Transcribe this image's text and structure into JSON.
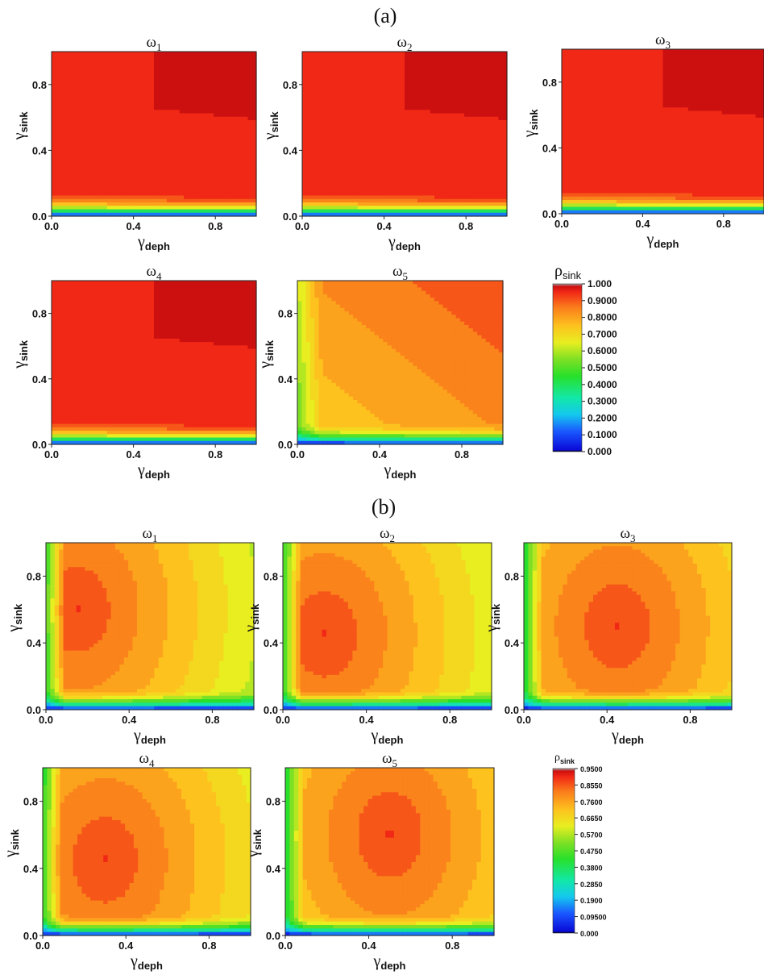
{
  "figure": {
    "panel_a_label": "(a)",
    "panel_b_label": "(b)"
  },
  "chart_data": [
    {
      "panel": "(a)",
      "type": "heatmap",
      "title": "ω1",
      "xlabel": "γdeph",
      "ylabel": "γsink",
      "xlim": [
        0,
        1
      ],
      "ylim": [
        0,
        1
      ],
      "xticks": [
        "0.0",
        "0.4",
        "0.8"
      ],
      "yticks": [
        "0.0",
        "0.4",
        "0.8"
      ],
      "pattern": "plateau",
      "description": "rho_sink rises from ~0 at gamma_sink=0 to ~0.93-0.97 above gamma_sink≈0.15"
    },
    {
      "panel": "(a)",
      "type": "heatmap",
      "title": "ω2",
      "xlabel": "γdeph",
      "ylabel": "γsink",
      "xlim": [
        0,
        1
      ],
      "ylim": [
        0,
        1
      ],
      "xticks": [
        "0.0",
        "0.4",
        "0.8"
      ],
      "yticks": [
        "0.0",
        "0.4",
        "0.8"
      ],
      "pattern": "plateau"
    },
    {
      "panel": "(a)",
      "type": "heatmap",
      "title": "ω3",
      "xlabel": "γdeph",
      "ylabel": "γsink",
      "xlim": [
        0,
        1
      ],
      "ylim": [
        0,
        1
      ],
      "xticks": [
        "0.0",
        "0.4",
        "0.8"
      ],
      "yticks": [
        "0.0",
        "0.4",
        "0.8"
      ],
      "pattern": "plateau"
    },
    {
      "panel": "(a)",
      "type": "heatmap",
      "title": "ω4",
      "xlabel": "γdeph",
      "ylabel": "γsink",
      "xlim": [
        0,
        1
      ],
      "ylim": [
        0,
        1
      ],
      "xticks": [
        "0.0",
        "0.4",
        "0.8"
      ],
      "yticks": [
        "0.0",
        "0.4",
        "0.8"
      ],
      "pattern": "plateau"
    },
    {
      "panel": "(a)",
      "type": "heatmap",
      "title": "ω5",
      "xlabel": "γdeph",
      "ylabel": "γsink",
      "xlim": [
        0,
        1
      ],
      "ylim": [
        0,
        1
      ],
      "xticks": [
        "0.0",
        "0.4",
        "0.8"
      ],
      "yticks": [
        "0.0",
        "0.4",
        "0.8"
      ],
      "pattern": "diagonal",
      "description": "rho_sink low (~0.5) near gamma_deph=0, increases toward ~0.88 at high gamma_deph and gamma_sink"
    },
    {
      "panel": "(a)",
      "type": "colorbar",
      "title": "ρsink",
      "ticks": [
        "1.000",
        "0.9000",
        "0.8000",
        "0.7000",
        "0.6000",
        "0.5000",
        "0.4000",
        "0.3000",
        "0.2000",
        "0.1000",
        "0.000"
      ],
      "range": [
        0,
        1
      ]
    },
    {
      "panel": "(b)",
      "type": "heatmap",
      "title": "ω1",
      "xlabel": "γdeph",
      "ylabel": "γsink",
      "xlim": [
        0,
        1
      ],
      "ylim": [
        0,
        1
      ],
      "xticks": [
        "0.0",
        "0.4",
        "0.8"
      ],
      "yticks": [
        "0.0",
        "0.4",
        "0.8"
      ],
      "pattern": "peak",
      "peak": [
        0.15,
        0.6
      ],
      "description": "maximum ~0.85 near gamma_deph≈0.15, gamma_sink≈0.6; decreasing with gamma_deph"
    },
    {
      "panel": "(b)",
      "type": "heatmap",
      "title": "ω2",
      "xlabel": "γdeph",
      "ylabel": "γsink",
      "xlim": [
        0,
        1
      ],
      "ylim": [
        0,
        1
      ],
      "xticks": [
        "0.0",
        "0.4",
        "0.8"
      ],
      "yticks": [
        "0.0",
        "0.4",
        "0.8"
      ],
      "pattern": "peak",
      "peak": [
        0.2,
        0.45
      ]
    },
    {
      "panel": "(b)",
      "type": "heatmap",
      "title": "ω3",
      "xlabel": "γdeph",
      "ylabel": "γsink",
      "xlim": [
        0,
        1
      ],
      "ylim": [
        0,
        1
      ],
      "xticks": [
        "0.0",
        "0.4",
        "0.8"
      ],
      "yticks": [
        "0.0",
        "0.4",
        "0.8"
      ],
      "pattern": "peak",
      "peak": [
        0.45,
        0.5
      ]
    },
    {
      "panel": "(b)",
      "type": "heatmap",
      "title": "ω4",
      "xlabel": "γdeph",
      "ylabel": "γsink",
      "xlim": [
        0,
        1
      ],
      "ylim": [
        0,
        1
      ],
      "xticks": [
        "0.0",
        "0.4",
        "0.8"
      ],
      "yticks": [
        "0.0",
        "0.4",
        "0.8"
      ],
      "pattern": "peak",
      "peak": [
        0.3,
        0.45
      ]
    },
    {
      "panel": "(b)",
      "type": "heatmap",
      "title": "ω5",
      "xlabel": "γdeph",
      "ylabel": "γsink",
      "xlim": [
        0,
        1
      ],
      "ylim": [
        0,
        1
      ],
      "xticks": [
        "0.0",
        "0.4",
        "0.8"
      ],
      "yticks": [
        "0.0",
        "0.4",
        "0.8"
      ],
      "pattern": "peak",
      "peak": [
        0.5,
        0.6
      ]
    },
    {
      "panel": "(b)",
      "type": "colorbar",
      "title": "ρsink",
      "ticks": [
        "0.9500",
        "0.8550",
        "0.7600",
        "0.6650",
        "0.5700",
        "0.4750",
        "0.3800",
        "0.2850",
        "0.1900",
        "0.09500",
        "0.000"
      ],
      "range": [
        0,
        0.95
      ]
    }
  ]
}
